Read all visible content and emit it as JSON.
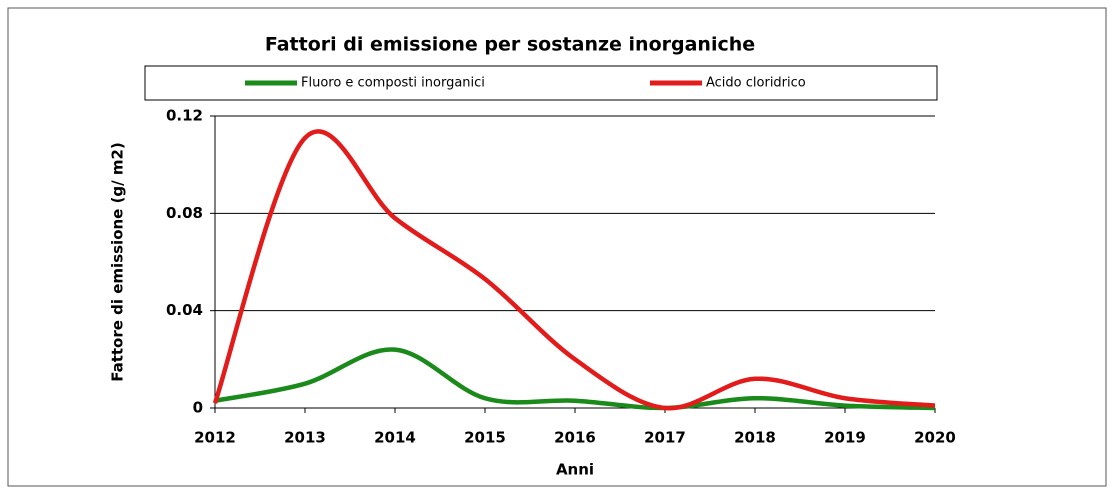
{
  "chart_data": {
    "type": "line",
    "title": "Fattori di emissione per sostanze inorganiche",
    "x_label": "Anni",
    "y_label": "Fattore di emissione (g/ m2)",
    "x": [
      2012,
      2013,
      2014,
      2015,
      2016,
      2017,
      2018,
      2019,
      2020
    ],
    "series": [
      {
        "name": "Fluoro e composti inorganici",
        "color": "#1a8a1a",
        "values": [
          0.003,
          0.01,
          0.024,
          0.004,
          0.003,
          0,
          0.004,
          0.001,
          0
        ]
      },
      {
        "name": "Acido cloridrico",
        "color": "#e21b1b",
        "values": [
          0.002,
          0.111,
          0.078,
          0.053,
          0.02,
          0,
          0.012,
          0.004,
          0.001
        ]
      }
    ],
    "xlim": [
      2012,
      2020
    ],
    "xticks": [
      2012,
      2013,
      2014,
      2015,
      2016,
      2017,
      2018,
      2019,
      2020
    ],
    "ylim": [
      0,
      0.12
    ],
    "yticks": [
      0,
      0.04,
      0.08,
      0.12
    ],
    "grid": true
  }
}
